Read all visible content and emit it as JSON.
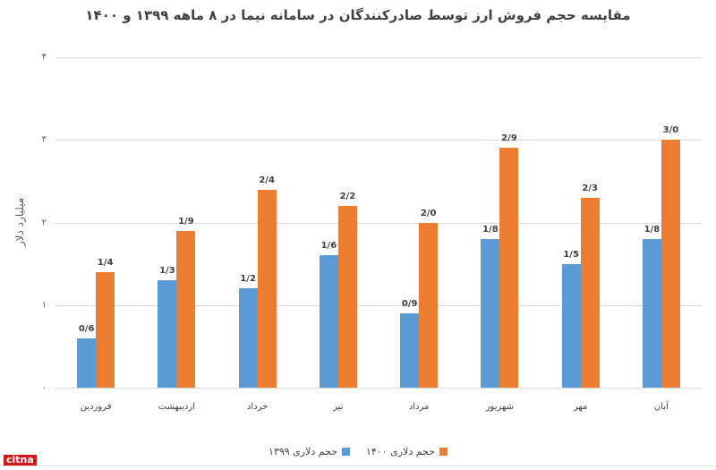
{
  "chart_data": {
    "type": "bar",
    "title": "مقایسه حجم فروش ارز توسط صادرکنندگان در سامانه نیما در ۸ ماهه ۱۳۹۹ و ۱۴۰۰",
    "xlabel": "",
    "ylabel": "میلیارد دلار",
    "ylim": [
      0,
      4
    ],
    "yticks": [
      "۰",
      "۱",
      "۲",
      "۳",
      "۴"
    ],
    "grid": true,
    "legend_position": "bottom",
    "categories": [
      "فروردین",
      "اردیبهشت",
      "خرداد",
      "تیر",
      "مرداد",
      "شهریور",
      "مهر",
      "آبان"
    ],
    "series": [
      {
        "name": "حجم دلاری ۱۳۹۹",
        "color": "#5b9bd5",
        "values": [
          0.6,
          1.3,
          1.2,
          1.6,
          0.9,
          1.8,
          1.5,
          1.8
        ],
        "labels": [
          "0/6",
          "1/3",
          "1/2",
          "1/6",
          "0/9",
          "1/8",
          "1/5",
          "1/8"
        ]
      },
      {
        "name": "حجم دلاری ۱۴۰۰",
        "color": "#ed7d31",
        "values": [
          1.4,
          1.9,
          2.4,
          2.2,
          2.0,
          2.9,
          2.3,
          3.0
        ],
        "labels": [
          "1/4",
          "1/9",
          "2/4",
          "2/2",
          "2/0",
          "2/9",
          "2/3",
          "3/0"
        ]
      }
    ]
  },
  "legend": {
    "s1400": "حجم دلاری ۱۴۰۰",
    "s1399": "حجم دلاری ۱۳۹۹"
  },
  "logo": {
    "text": "citna"
  }
}
